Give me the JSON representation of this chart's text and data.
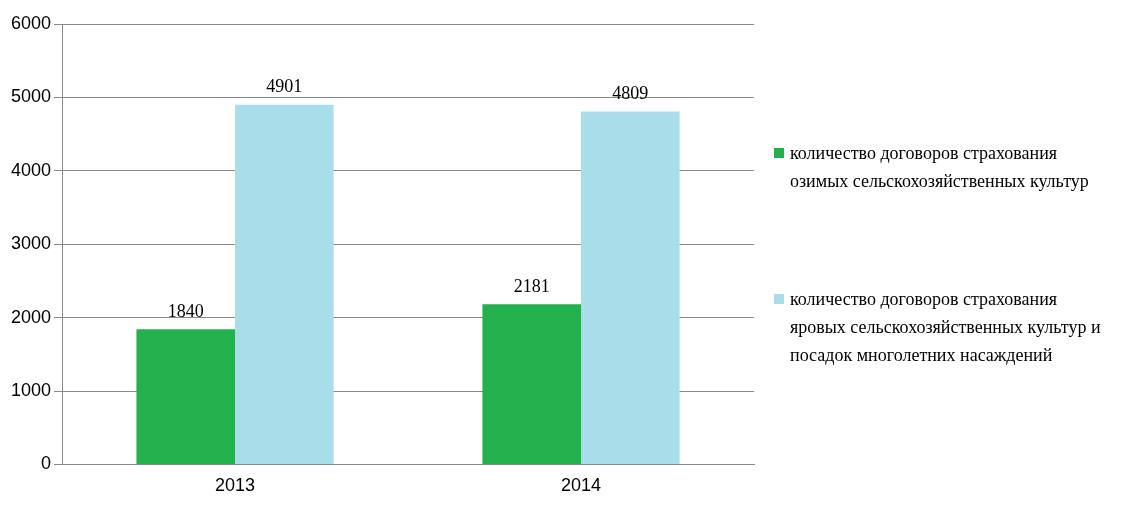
{
  "chart_data": {
    "type": "bar",
    "categories": [
      "2013",
      "2014"
    ],
    "series": [
      {
        "name": "количество договоров страхования озимых сельскохозяйственных культур",
        "color": "#22b14c",
        "values": [
          1840,
          2181
        ]
      },
      {
        "name": "количество договоров страхования яровых сельскохозяйственных культур и посадок многолетних насаждений",
        "color": "#a9dde9",
        "values": [
          4901,
          4809
        ]
      }
    ],
    "ylim": [
      0,
      6000
    ],
    "yticks": [
      0,
      1000,
      2000,
      3000,
      4000,
      5000,
      6000
    ],
    "grid": "y",
    "legend": "right",
    "data_labels": true
  }
}
